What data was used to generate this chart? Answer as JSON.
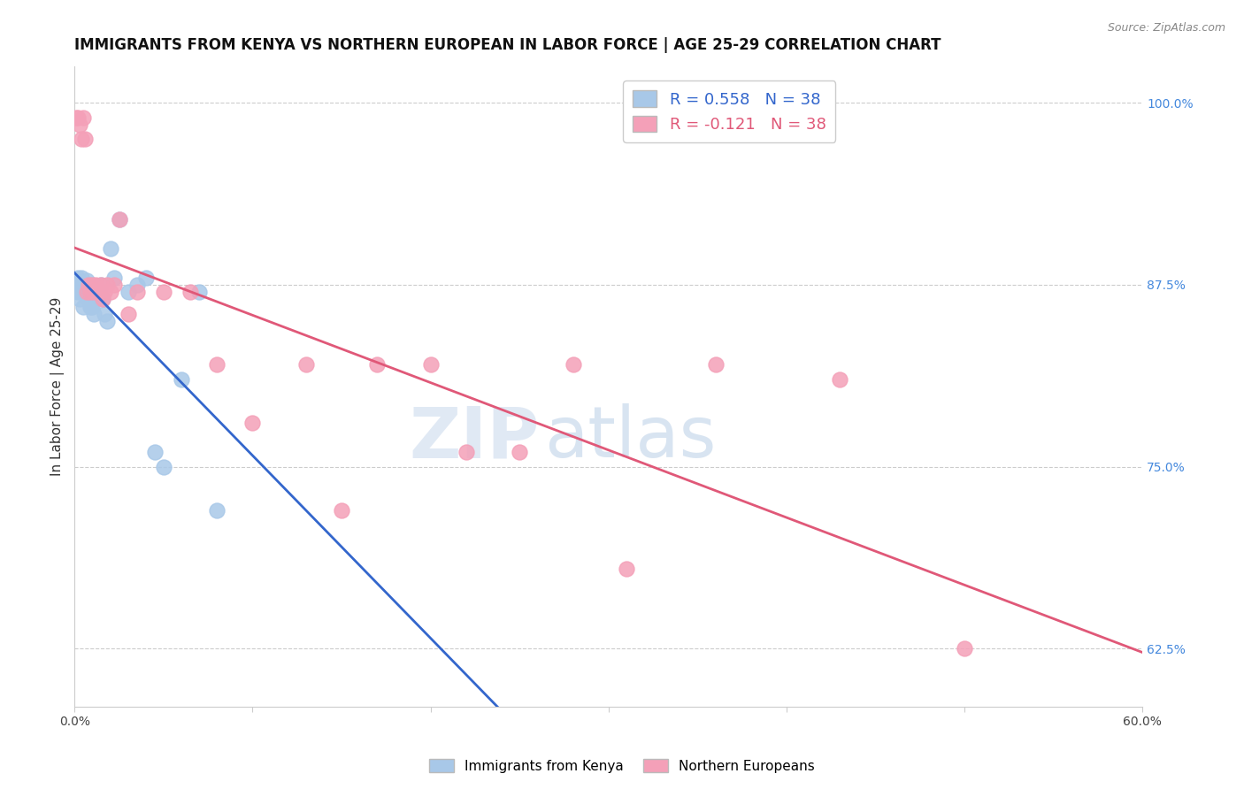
{
  "title": "IMMIGRANTS FROM KENYA VS NORTHERN EUROPEAN IN LABOR FORCE | AGE 25-29 CORRELATION CHART",
  "source": "Source: ZipAtlas.com",
  "ylabel": "In Labor Force | Age 25-29",
  "xlim": [
    0.0,
    0.6
  ],
  "ylim": [
    0.585,
    1.025
  ],
  "xticks": [
    0.0,
    0.1,
    0.2,
    0.3,
    0.4,
    0.5,
    0.6
  ],
  "xtick_labels": [
    "0.0%",
    "",
    "",
    "",
    "",
    "",
    "60.0%"
  ],
  "yticks_right": [
    0.625,
    0.75,
    0.875,
    1.0
  ],
  "ytick_labels_right": [
    "62.5%",
    "75.0%",
    "87.5%",
    "100.0%"
  ],
  "kenya_x": [
    0.001,
    0.002,
    0.002,
    0.003,
    0.003,
    0.004,
    0.004,
    0.005,
    0.005,
    0.006,
    0.006,
    0.007,
    0.007,
    0.008,
    0.008,
    0.009,
    0.009,
    0.01,
    0.01,
    0.011,
    0.012,
    0.013,
    0.014,
    0.015,
    0.016,
    0.017,
    0.018,
    0.02,
    0.022,
    0.025,
    0.03,
    0.035,
    0.04,
    0.045,
    0.05,
    0.06,
    0.07,
    0.08
  ],
  "kenya_y": [
    0.875,
    0.87,
    0.88,
    0.865,
    0.875,
    0.87,
    0.88,
    0.86,
    0.872,
    0.87,
    0.875,
    0.868,
    0.878,
    0.865,
    0.872,
    0.86,
    0.87,
    0.875,
    0.86,
    0.855,
    0.87,
    0.865,
    0.87,
    0.875,
    0.865,
    0.855,
    0.85,
    0.9,
    0.88,
    0.92,
    0.87,
    0.875,
    0.88,
    0.76,
    0.75,
    0.81,
    0.87,
    0.72
  ],
  "northern_x": [
    0.001,
    0.002,
    0.003,
    0.004,
    0.005,
    0.006,
    0.007,
    0.008,
    0.009,
    0.01,
    0.011,
    0.012,
    0.013,
    0.014,
    0.015,
    0.016,
    0.017,
    0.018,
    0.02,
    0.022,
    0.025,
    0.03,
    0.035,
    0.05,
    0.065,
    0.08,
    0.1,
    0.13,
    0.15,
    0.17,
    0.2,
    0.22,
    0.25,
    0.28,
    0.31,
    0.36,
    0.43,
    0.5
  ],
  "northern_y": [
    0.99,
    0.99,
    0.985,
    0.975,
    0.99,
    0.975,
    0.87,
    0.875,
    0.87,
    0.875,
    0.87,
    0.875,
    0.87,
    0.87,
    0.875,
    0.865,
    0.87,
    0.875,
    0.87,
    0.875,
    0.92,
    0.855,
    0.87,
    0.87,
    0.87,
    0.82,
    0.78,
    0.82,
    0.72,
    0.82,
    0.82,
    0.76,
    0.76,
    0.82,
    0.68,
    0.82,
    0.81,
    0.625
  ],
  "kenya_color": "#a8c8e8",
  "northern_color": "#f4a0b8",
  "kenya_line_color": "#3366cc",
  "northern_line_color": "#e05878",
  "kenya_R": 0.558,
  "kenya_N": 38,
  "northern_R": -0.121,
  "northern_N": 38,
  "grid_color": "#cccccc",
  "background_color": "#ffffff",
  "watermark_zip": "ZIP",
  "watermark_atlas": "atlas",
  "title_fontsize": 12,
  "axis_label_fontsize": 11,
  "tick_fontsize": 10,
  "legend_fontsize": 13
}
